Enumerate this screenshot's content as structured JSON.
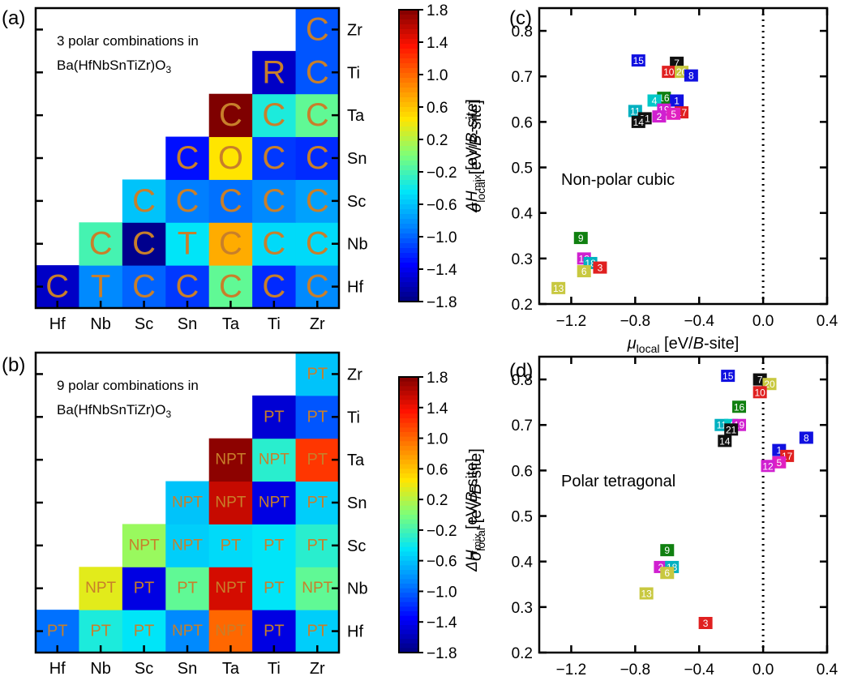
{
  "colors": {
    "colormap": [
      "#00007f",
      "#0000ff",
      "#007fff",
      "#00e5f8",
      "#7cff79",
      "#ffe500",
      "#ff7f00",
      "#ff1200",
      "#7f0000"
    ],
    "cell_label_color": "#c87f2a",
    "point_colors": {
      "1": "#1010e0",
      "2": "#d020d0",
      "3": "#e02020",
      "4": "#00c8c8",
      "5": "#e020c0",
      "6": "#c8c840",
      "7": "#101010",
      "8": "#1010e0",
      "9": "#108010",
      "10": "#e02020",
      "11": "#00b0c0",
      "12": "#d020d0",
      "13": "#c8c840",
      "14": "#101010",
      "15": "#1010e0",
      "16": "#108010",
      "17": "#e02020",
      "18": "#00b0c0",
      "19": "#d020d0",
      "20": "#c8c840",
      "21": "#101010"
    }
  },
  "chart_data": [
    {
      "panel": "(a)",
      "type": "heatmap",
      "annotation_line1": "3 polar combinations in",
      "annotation_line2": "Ba(HfNbSnTiZr)O",
      "annotation_sub": "3",
      "x_categories": [
        "Hf",
        "Nb",
        "Sc",
        "Sn",
        "Ta",
        "Ti",
        "Zr"
      ],
      "y_categories": [
        "Hf",
        "Nb",
        "Sc",
        "Sn",
        "Ta",
        "Ti",
        "Zr"
      ],
      "colorbar": {
        "label": "ΔH",
        "label_sub": "mix",
        "label_unit": " [eV/",
        "label_unit_italic": "B",
        "label_unit_end": "-site]",
        "range": [
          -1.8,
          1.8
        ],
        "ticks": [
          "1.8",
          "1.4",
          "1.0",
          "0.6",
          "0.2",
          "−0.2",
          "−0.6",
          "−1.0",
          "−1.4",
          "−1.8"
        ]
      },
      "cells": [
        {
          "x": "Hf",
          "y": "Hf",
          "value": -1.55,
          "label": "C"
        },
        {
          "x": "Nb",
          "y": "Hf",
          "value": -0.85,
          "label": "T"
        },
        {
          "x": "Sc",
          "y": "Hf",
          "value": -1.0,
          "label": "C"
        },
        {
          "x": "Sn",
          "y": "Hf",
          "value": -1.15,
          "label": "C"
        },
        {
          "x": "Ta",
          "y": "Hf",
          "value": -0.1,
          "label": "C"
        },
        {
          "x": "Ti",
          "y": "Hf",
          "value": -1.2,
          "label": "C"
        },
        {
          "x": "Zr",
          "y": "Hf",
          "value": -0.85,
          "label": "C"
        },
        {
          "x": "Nb",
          "y": "Nb",
          "value": -0.2,
          "label": "C"
        },
        {
          "x": "Sc",
          "y": "Nb",
          "value": -1.75,
          "label": "C"
        },
        {
          "x": "Sn",
          "y": "Nb",
          "value": -0.45,
          "label": "T"
        },
        {
          "x": "Ta",
          "y": "Nb",
          "value": 0.7,
          "label": "C"
        },
        {
          "x": "Ti",
          "y": "Nb",
          "value": -0.5,
          "label": "C"
        },
        {
          "x": "Zr",
          "y": "Nb",
          "value": -0.5,
          "label": "C"
        },
        {
          "x": "Sc",
          "y": "Sc",
          "value": -0.6,
          "label": "C"
        },
        {
          "x": "Sn",
          "y": "Sc",
          "value": -0.9,
          "label": "C"
        },
        {
          "x": "Ta",
          "y": "Sc",
          "value": -0.95,
          "label": "C"
        },
        {
          "x": "Ti",
          "y": "Sc",
          "value": -0.85,
          "label": "C"
        },
        {
          "x": "Zr",
          "y": "Sc",
          "value": -0.75,
          "label": "C"
        },
        {
          "x": "Sn",
          "y": "Sn",
          "value": -1.3,
          "label": "C"
        },
        {
          "x": "Ta",
          "y": "Sn",
          "value": 0.45,
          "label": "O"
        },
        {
          "x": "Ti",
          "y": "Sn",
          "value": -1.15,
          "label": "C"
        },
        {
          "x": "Zr",
          "y": "Sn",
          "value": -1.2,
          "label": "C"
        },
        {
          "x": "Ta",
          "y": "Ta",
          "value": 1.8,
          "label": "C"
        },
        {
          "x": "Ti",
          "y": "Ta",
          "value": -0.35,
          "label": "C"
        },
        {
          "x": "Zr",
          "y": "Ta",
          "value": -0.1,
          "label": "C"
        },
        {
          "x": "Ti",
          "y": "Ti",
          "value": -1.55,
          "label": "R"
        },
        {
          "x": "Zr",
          "y": "Ti",
          "value": -1.05,
          "label": "C"
        },
        {
          "x": "Zr",
          "y": "Zr",
          "value": -1.05,
          "label": "C"
        }
      ]
    },
    {
      "panel": "(b)",
      "type": "heatmap",
      "annotation_line1": "9 polar combinations in",
      "annotation_line2": "Ba(HfNbSnTiZr)O",
      "annotation_sub": "3",
      "x_categories": [
        "Hf",
        "Nb",
        "Sc",
        "Sn",
        "Ta",
        "Ti",
        "Zr"
      ],
      "y_categories": [
        "Hf",
        "Nb",
        "Sc",
        "Sn",
        "Ta",
        "Ti",
        "Zr"
      ],
      "colorbar": {
        "label": "ΔH",
        "label_sub": "mix",
        "label_unit": " [eV/",
        "label_unit_italic": "B",
        "label_unit_end": "-site]",
        "range": [
          -1.8,
          1.8
        ],
        "ticks": [
          "1.8",
          "1.4",
          "1.0",
          "0.6",
          "0.2",
          "−0.2",
          "−0.6",
          "−1.0",
          "−1.4",
          "−1.8"
        ]
      },
      "cells": [
        {
          "x": "Hf",
          "y": "Hf",
          "value": -0.95,
          "label": "PT"
        },
        {
          "x": "Nb",
          "y": "Hf",
          "value": -0.35,
          "label": "PT"
        },
        {
          "x": "Sc",
          "y": "Hf",
          "value": -0.45,
          "label": "PT"
        },
        {
          "x": "Sn",
          "y": "Hf",
          "value": -0.85,
          "label": "NPT"
        },
        {
          "x": "Ta",
          "y": "Hf",
          "value": 1.0,
          "label": "NPT"
        },
        {
          "x": "Ti",
          "y": "Hf",
          "value": -1.45,
          "label": "PT"
        },
        {
          "x": "Zr",
          "y": "Hf",
          "value": -0.55,
          "label": "PT"
        },
        {
          "x": "Nb",
          "y": "Nb",
          "value": 0.35,
          "label": "NPT"
        },
        {
          "x": "Sc",
          "y": "Nb",
          "value": -1.45,
          "label": "PT"
        },
        {
          "x": "Sn",
          "y": "Nb",
          "value": -0.1,
          "label": "PT"
        },
        {
          "x": "Ta",
          "y": "Nb",
          "value": 1.5,
          "label": "NPT"
        },
        {
          "x": "Ti",
          "y": "Nb",
          "value": -0.45,
          "label": "PT"
        },
        {
          "x": "Zr",
          "y": "Nb",
          "value": -0.1,
          "label": "NPT"
        },
        {
          "x": "Sc",
          "y": "Sc",
          "value": 0.1,
          "label": "NPT"
        },
        {
          "x": "Sn",
          "y": "Sc",
          "value": -0.55,
          "label": "NPT"
        },
        {
          "x": "Ta",
          "y": "Sc",
          "value": -0.5,
          "label": "PT"
        },
        {
          "x": "Ti",
          "y": "Sc",
          "value": -0.45,
          "label": "PT"
        },
        {
          "x": "Zr",
          "y": "Sc",
          "value": -0.3,
          "label": "PT"
        },
        {
          "x": "Sn",
          "y": "Sn",
          "value": -0.6,
          "label": "NPT"
        },
        {
          "x": "Ta",
          "y": "Sn",
          "value": 1.55,
          "label": "NPT"
        },
        {
          "x": "Ti",
          "y": "Sn",
          "value": -1.45,
          "label": "NPT"
        },
        {
          "x": "Zr",
          "y": "Sn",
          "value": -0.55,
          "label": "PT"
        },
        {
          "x": "Ta",
          "y": "Ta",
          "value": 1.75,
          "label": "NPT"
        },
        {
          "x": "Ti",
          "y": "Ta",
          "value": -0.3,
          "label": "NPT"
        },
        {
          "x": "Zr",
          "y": "Ta",
          "value": 1.2,
          "label": "PT"
        },
        {
          "x": "Ti",
          "y": "Ti",
          "value": -1.5,
          "label": "PT"
        },
        {
          "x": "Zr",
          "y": "Ti",
          "value": -1.05,
          "label": "PT"
        },
        {
          "x": "Zr",
          "y": "Zr",
          "value": -0.6,
          "label": "PT"
        }
      ]
    },
    {
      "panel": "(c)",
      "type": "scatter",
      "annotation": "Non-polar cubic",
      "x_label": "μ",
      "x_label_sub": "local",
      "x_label_unit": " [eV/",
      "x_label_unit_italic": "B",
      "x_label_unit_end": "-site]",
      "y_label": "σ",
      "y_label_sub": "local",
      "y_label_unit": " [eV/",
      "y_label_unit_italic": "B",
      "y_label_unit_end": "-site]",
      "xlim": [
        -1.4,
        0.4
      ],
      "ylim": [
        0.2,
        0.85
      ],
      "x_ticks": [
        -1.2,
        -0.8,
        -0.4,
        0.0,
        0.4
      ],
      "x_tick_labels": [
        "−1.2",
        "−0.8",
        "−0.4",
        "0.0",
        "0.4"
      ],
      "y_ticks": [
        0.2,
        0.3,
        0.4,
        0.5,
        0.6,
        0.7,
        0.8
      ],
      "y_tick_labels": [
        "0.2",
        "0.3",
        "0.4",
        "0.5",
        "0.6",
        "0.7",
        "0.8"
      ],
      "vline_x": 0.0,
      "points": [
        {
          "id": "15",
          "x": -0.78,
          "y": 0.735
        },
        {
          "id": "7",
          "x": -0.54,
          "y": 0.73
        },
        {
          "id": "10",
          "x": -0.59,
          "y": 0.71
        },
        {
          "id": "20",
          "x": -0.51,
          "y": 0.71
        },
        {
          "id": "8",
          "x": -0.45,
          "y": 0.702
        },
        {
          "id": "16",
          "x": -0.62,
          "y": 0.653
        },
        {
          "id": "4",
          "x": -0.68,
          "y": 0.647
        },
        {
          "id": "1",
          "x": -0.54,
          "y": 0.647
        },
        {
          "id": "19",
          "x": -0.62,
          "y": 0.627
        },
        {
          "id": "11",
          "x": -0.8,
          "y": 0.624
        },
        {
          "id": "17",
          "x": -0.51,
          "y": 0.621
        },
        {
          "id": "5",
          "x": -0.56,
          "y": 0.618
        },
        {
          "id": "2",
          "x": -0.65,
          "y": 0.612
        },
        {
          "id": "21",
          "x": -0.74,
          "y": 0.608
        },
        {
          "id": "14",
          "x": -0.78,
          "y": 0.6
        },
        {
          "id": "9",
          "x": -1.14,
          "y": 0.345
        },
        {
          "id": "12",
          "x": -1.12,
          "y": 0.3
        },
        {
          "id": "18",
          "x": -1.08,
          "y": 0.29
        },
        {
          "id": "3",
          "x": -1.02,
          "y": 0.28
        },
        {
          "id": "6",
          "x": -1.12,
          "y": 0.272
        },
        {
          "id": "13",
          "x": -1.28,
          "y": 0.235
        }
      ]
    },
    {
      "panel": "(d)",
      "type": "scatter",
      "annotation": "Polar tetragonal",
      "x_label": "μ",
      "x_label_sub": "local",
      "x_label_unit": " [eV/",
      "x_label_unit_italic": "B",
      "x_label_unit_end": "-site]",
      "y_label": "σ",
      "y_label_sub": "local",
      "y_label_unit": " [eV/",
      "y_label_unit_italic": "B",
      "y_label_unit_end": "-site]",
      "xlim": [
        -1.4,
        0.4
      ],
      "ylim": [
        0.2,
        0.85
      ],
      "x_ticks": [
        -1.2,
        -0.8,
        -0.4,
        0.0,
        0.4
      ],
      "x_tick_labels": [
        "−1.2",
        "−0.8",
        "−0.4",
        "0.0",
        "0.4"
      ],
      "y_ticks": [
        0.2,
        0.3,
        0.4,
        0.5,
        0.6,
        0.7,
        0.8
      ],
      "y_tick_labels": [
        "0.2",
        "0.3",
        "0.4",
        "0.5",
        "0.6",
        "0.7",
        "0.8"
      ],
      "vline_x": 0.0,
      "points": [
        {
          "id": "15",
          "x": -0.22,
          "y": 0.808
        },
        {
          "id": "7",
          "x": -0.02,
          "y": 0.8
        },
        {
          "id": "20",
          "x": 0.04,
          "y": 0.79
        },
        {
          "id": "10",
          "x": -0.02,
          "y": 0.772
        },
        {
          "id": "16",
          "x": -0.15,
          "y": 0.74
        },
        {
          "id": "11",
          "x": -0.26,
          "y": 0.7
        },
        {
          "id": "4",
          "x": -0.2,
          "y": 0.7
        },
        {
          "id": "19",
          "x": -0.15,
          "y": 0.7
        },
        {
          "id": "21",
          "x": -0.2,
          "y": 0.69
        },
        {
          "id": "14",
          "x": -0.24,
          "y": 0.665
        },
        {
          "id": "8",
          "x": 0.27,
          "y": 0.672
        },
        {
          "id": "1",
          "x": 0.1,
          "y": 0.645
        },
        {
          "id": "17",
          "x": 0.15,
          "y": 0.632
        },
        {
          "id": "5",
          "x": 0.1,
          "y": 0.618
        },
        {
          "id": "12",
          "x": 0.03,
          "y": 0.61
        },
        {
          "id": "9",
          "x": -0.6,
          "y": 0.425
        },
        {
          "id": "2",
          "x": -0.64,
          "y": 0.388
        },
        {
          "id": "18",
          "x": -0.57,
          "y": 0.388
        },
        {
          "id": "6",
          "x": -0.6,
          "y": 0.375
        },
        {
          "id": "13",
          "x": -0.73,
          "y": 0.33
        },
        {
          "id": "3",
          "x": -0.36,
          "y": 0.265
        }
      ]
    }
  ]
}
